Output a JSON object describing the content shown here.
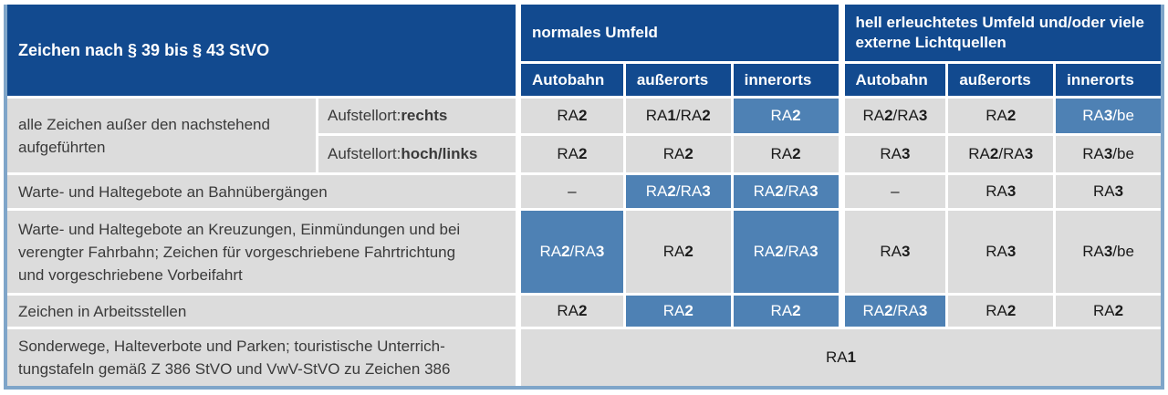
{
  "colors": {
    "header_blue": "#124a8f",
    "highlight_blue": "#4e81b4",
    "cell_gray": "#dcdcdc",
    "outer_border_blue": "#7fa5c9",
    "header_text": "#ffffff",
    "body_text": "#3a3a3a"
  },
  "header": {
    "col1": "Zeichen nach § 39 bis § 43 StVO",
    "group1": "normales Umfeld",
    "group2": "hell erleuchtetes Umfeld und/oder viele externe Lichtquellen",
    "cols": [
      "Autobahn",
      "außerorts",
      "innerorts",
      "Autobahn",
      "außerorts",
      "innerorts"
    ]
  },
  "body": {
    "row_groups": [
      {
        "label": "alle Zeichen außer den nachstehend\naufgeführten",
        "subrows": [
          {
            "label_prefix": "Aufstellort:",
            "label_bold": "rechts",
            "cells": [
              {
                "text": "RA2"
              },
              {
                "text": "RA1/RA2"
              },
              {
                "text": "RA2",
                "highlight": true
              },
              {
                "text": "RA2/RA3"
              },
              {
                "text": "RA2"
              },
              {
                "text": "RA3/be",
                "highlight": true
              }
            ]
          },
          {
            "label_prefix": "Aufstellort:",
            "label_bold": "hoch/links",
            "cells": [
              {
                "text": "RA2"
              },
              {
                "text": "RA2"
              },
              {
                "text": "RA2"
              },
              {
                "text": "RA3"
              },
              {
                "text": "RA2/RA3"
              },
              {
                "text": "RA3/be"
              }
            ]
          }
        ]
      },
      {
        "label": "Warte- und Haltegebote an Bahnübergängen",
        "cells": [
          {
            "text": "–"
          },
          {
            "text": "RA2/RA3",
            "highlight": true
          },
          {
            "text": "RA2/RA3",
            "highlight": true
          },
          {
            "text": "–"
          },
          {
            "text": "RA3"
          },
          {
            "text": "RA3"
          }
        ]
      },
      {
        "label": "Warte- und Haltegebote an Kreuzungen, Einmündungen und bei\nverengter Fahrbahn; Zeichen für vorgeschriebene Fahrtrichtung\nund vorgeschriebene Vorbeifahrt",
        "cells": [
          {
            "text": "RA2/RA3",
            "highlight": true
          },
          {
            "text": "RA2"
          },
          {
            "text": "RA2/RA3",
            "highlight": true
          },
          {
            "text": "RA3"
          },
          {
            "text": "RA3"
          },
          {
            "text": "RA3/be"
          }
        ]
      },
      {
        "label": "Zeichen in Arbeitsstellen",
        "cells": [
          {
            "text": "RA2"
          },
          {
            "text": "RA2",
            "highlight": true
          },
          {
            "text": "RA2",
            "highlight": true
          },
          {
            "text": "RA2/RA3",
            "highlight": true
          },
          {
            "text": "RA2"
          },
          {
            "text": "RA2"
          }
        ]
      },
      {
        "label": "Sonderwege, Halteverbote und Parken; touristische Unterrich-\ntungstafeln gemäß Z 386 StVO und VwV-StVO zu Zeichen 386",
        "span_all": true,
        "cells": [
          {
            "text": "RA1"
          }
        ]
      }
    ]
  }
}
